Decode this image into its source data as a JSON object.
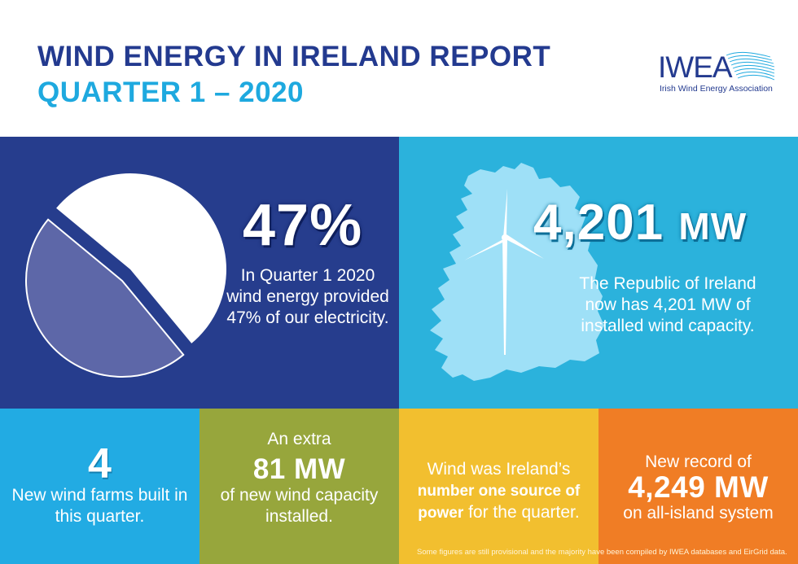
{
  "header": {
    "title": "WIND ENERGY IN IRELAND REPORT",
    "subtitle": "QUARTER 1 – 2020",
    "logo_text": "IWEA",
    "logo_subtitle": "Irish Wind Energy Association"
  },
  "wind_share": {
    "value": "47%",
    "description": "In Quarter 1 2020 wind energy provided 47% of our electricity.",
    "fraction": 0.47,
    "colors": {
      "panel": "#263d8d",
      "wind_slice": "#5d67a8",
      "other_slice": "#ffffff"
    }
  },
  "capacity": {
    "value_number": "4,201",
    "value_unit": "MW",
    "description": "The Republic of Ireland now has 4,201 MW of installed wind capacity.",
    "colors": {
      "panel": "#2bb2dc",
      "map": "#9ee0f7"
    }
  },
  "tiles": {
    "farms": {
      "value": "4",
      "description": "New wind farms built in this quarter.",
      "color": "#22abe3"
    },
    "extra": {
      "intro": "An extra",
      "value": "81 MW",
      "description": "of new wind capacity installed.",
      "color": "#97a63c"
    },
    "source": {
      "prefix": "Wind was Ireland’s",
      "bold": "number one source of power",
      "suffix": "for the quarter.",
      "color": "#f2bf2f"
    },
    "record": {
      "intro": "New record of",
      "value": "4,249 MW",
      "description": "on all-island system",
      "color": "#f07d25"
    }
  },
  "footnote": "Some figures are still provisional and the majority have been compiled by IWEA databases and EirGrid data.",
  "icons": [
    "pie-chart-icon",
    "ireland-map-icon",
    "wind-turbine-icon",
    "iwea-logo"
  ]
}
